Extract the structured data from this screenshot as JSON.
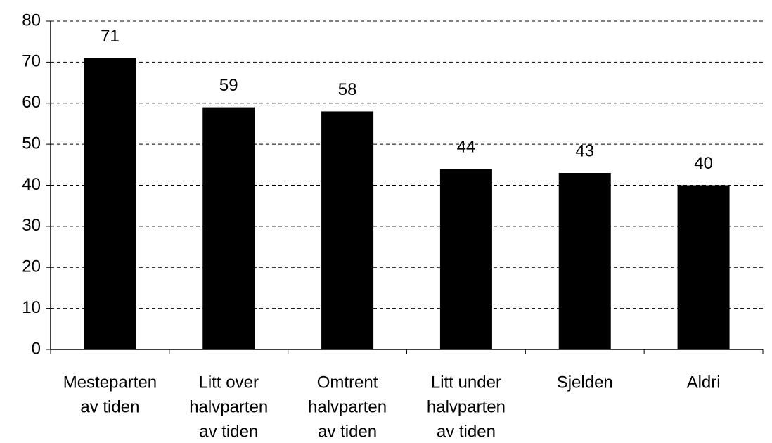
{
  "chart_data": {
    "type": "bar",
    "categories": [
      [
        "Mesteparten",
        "av tiden"
      ],
      [
        "Litt over",
        "halvparten",
        "av tiden"
      ],
      [
        "Omtrent",
        "halvparten",
        "av tiden"
      ],
      [
        "Litt under",
        "halvparten",
        "av tiden"
      ],
      [
        "Sjelden"
      ],
      [
        "Aldri"
      ]
    ],
    "values": [
      71,
      59,
      58,
      44,
      43,
      40
    ],
    "color": "#000000",
    "ylim": [
      0,
      80
    ],
    "yticks": [
      0,
      10,
      20,
      30,
      40,
      50,
      60,
      70,
      80
    ],
    "grid": true
  }
}
